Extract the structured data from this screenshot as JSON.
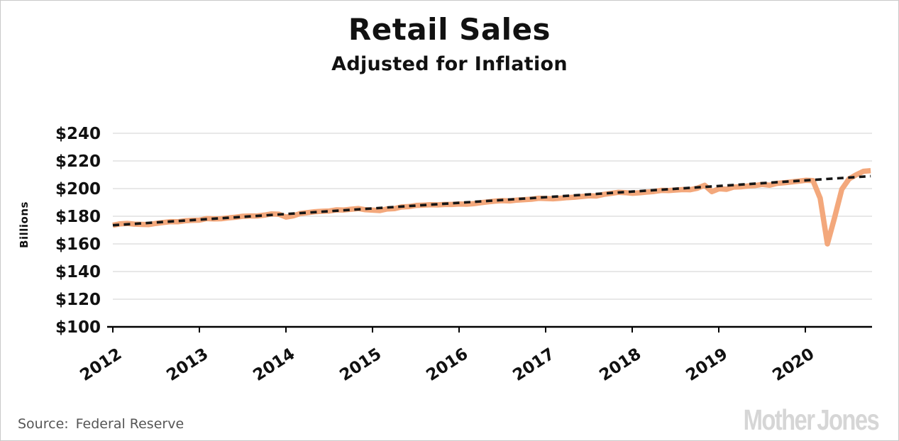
{
  "chart_data": {
    "type": "line",
    "title": "Retail Sales",
    "subtitle": "Adjusted for Inflation",
    "ylabel": "Billions",
    "ylim": [
      100,
      248
    ],
    "yticks": [
      100,
      120,
      140,
      160,
      180,
      200,
      220,
      240
    ],
    "ytick_labels": [
      "$100",
      "$120",
      "$140",
      "$160",
      "$180",
      "$200",
      "$220",
      "$240"
    ],
    "x_year_labels": [
      "2012",
      "2013",
      "2014",
      "2015",
      "2016",
      "2017",
      "2018",
      "2019",
      "2020"
    ],
    "grid": "horizontal",
    "legend": "none",
    "series": [
      {
        "name": "Retail sales, monthly, inflation-adjusted",
        "style": "solid",
        "color": "#F3A87C",
        "start": "2012-01",
        "end": "2020-10",
        "values": [
          173.5,
          174.5,
          174.8,
          174.3,
          174.1,
          174.0,
          174.8,
          175.5,
          176.1,
          176.0,
          176.7,
          177.1,
          177.2,
          178.3,
          178.1,
          178.2,
          178.8,
          179.3,
          180.0,
          180.2,
          180.2,
          180.8,
          181.7,
          181.5,
          179.4,
          180.3,
          182.0,
          182.6,
          183.3,
          183.6,
          183.8,
          184.6,
          184.5,
          185.1,
          185.6,
          184.7,
          184.4,
          184.1,
          185.3,
          185.5,
          186.7,
          187.0,
          187.8,
          188.0,
          188.3,
          188.2,
          188.5,
          188.5,
          188.8,
          188.7,
          189.1,
          189.8,
          190.4,
          191.0,
          191.3,
          191.1,
          191.7,
          192.0,
          192.3,
          193.0,
          192.8,
          192.6,
          193.0,
          193.5,
          193.8,
          194.3,
          194.8,
          194.6,
          195.8,
          196.5,
          197.3,
          197.1,
          196.6,
          197.0,
          197.5,
          197.9,
          198.7,
          198.6,
          199.0,
          199.3,
          199.2,
          200.3,
          202.4,
          197.8,
          199.9,
          199.5,
          201.1,
          201.3,
          201.9,
          202.2,
          203.0,
          202.4,
          203.8,
          204.2,
          204.8,
          205.4,
          206.0,
          205.8,
          193.0,
          160.0,
          179.0,
          199.5,
          207.0,
          210.0,
          212.5,
          213.0
        ]
      },
      {
        "name": "Linear trend",
        "style": "dashed",
        "color": "#161616",
        "trend_start_value": 173.5,
        "trend_end_value": 209.0
      }
    ]
  },
  "footer": {
    "source_label": "Source:",
    "source_value": "Federal Reserve"
  },
  "branding": {
    "logo_part1": "Mother",
    "logo_part2": "Jones"
  }
}
